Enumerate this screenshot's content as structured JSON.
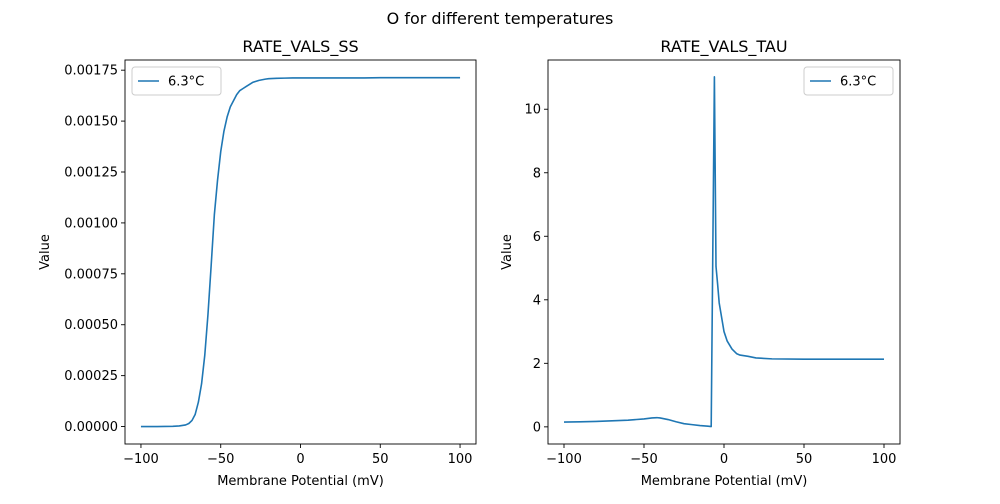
{
  "figure": {
    "suptitle": "O for different temperatures"
  },
  "chart_data": [
    {
      "type": "line",
      "title": "RATE_VALS_SS",
      "xlabel": "Membrane Potential (mV)",
      "ylabel": "Value",
      "xlim": [
        -110,
        110
      ],
      "ylim": [
        -8.57e-05,
        0.0018
      ],
      "xticks": [
        -100,
        -50,
        0,
        50,
        100
      ],
      "xtick_labels": [
        "−100",
        "−50",
        "0",
        "50",
        "100"
      ],
      "yticks": [
        0,
        0.00025,
        0.0005,
        0.00075,
        0.001,
        0.00125,
        0.0015,
        0.00175
      ],
      "ytick_labels": [
        "0.00000",
        "0.00025",
        "0.00050",
        "0.00075",
        "0.00100",
        "0.00125",
        "0.00150",
        "0.00175"
      ],
      "grid": false,
      "legend_position": "top-left",
      "colors": {
        "series": "#1f77b4"
      },
      "series": [
        {
          "name": "6.3°C",
          "x": [
            -100,
            -90,
            -80,
            -76,
            -72,
            -70,
            -68,
            -66,
            -64,
            -62,
            -60,
            -58,
            -56,
            -54,
            -52,
            -50,
            -48,
            -46,
            -44,
            -42,
            -40,
            -38,
            -36,
            -34,
            -32,
            -30,
            -28,
            -26,
            -24,
            -22,
            -20,
            -15,
            -10,
            -5,
            0,
            10,
            20,
            30,
            40,
            50,
            60,
            70,
            80,
            90,
            100
          ],
          "y": [
            0.0,
            0.0,
            1e-06,
            3e-06,
            8e-06,
            1.5e-05,
            3e-05,
            6e-05,
            0.00012,
            0.00021,
            0.00035,
            0.00055,
            0.00079,
            0.00104,
            0.00121,
            0.00135,
            0.00145,
            0.00152,
            0.00157,
            0.0016,
            0.00163,
            0.00165,
            0.00166,
            0.00167,
            0.00168,
            0.00169,
            0.001695,
            0.0017,
            0.001703,
            0.001706,
            0.001708,
            0.00171,
            0.001711,
            0.001712,
            0.001712,
            0.001712,
            0.001712,
            0.001712,
            0.001712,
            0.001713,
            0.001713,
            0.001713,
            0.001713,
            0.001713,
            0.001713
          ]
        }
      ]
    },
    {
      "type": "line",
      "title": "RATE_VALS_TAU",
      "xlabel": "Membrane Potential (mV)",
      "ylabel": "Value",
      "xlim": [
        -110,
        110
      ],
      "ylim": [
        -0.54,
        11.55
      ],
      "xticks": [
        -100,
        -50,
        0,
        50,
        100
      ],
      "xtick_labels": [
        "−100",
        "−50",
        "0",
        "50",
        "100"
      ],
      "yticks": [
        0,
        2,
        4,
        6,
        8,
        10
      ],
      "ytick_labels": [
        "0",
        "2",
        "4",
        "6",
        "8",
        "10"
      ],
      "grid": false,
      "legend_position": "top-right",
      "colors": {
        "series": "#1f77b4"
      },
      "series": [
        {
          "name": "6.3°C",
          "x": [
            -100,
            -90,
            -80,
            -70,
            -60,
            -50,
            -45,
            -42,
            -40,
            -35,
            -30,
            -25,
            -20,
            -15,
            -10,
            -8,
            -6,
            -5,
            -4,
            -3,
            -2,
            -1,
            0,
            2,
            5,
            8,
            10,
            15,
            20,
            30,
            50,
            70,
            100
          ],
          "y": [
            0.15,
            0.16,
            0.17,
            0.19,
            0.21,
            0.25,
            0.28,
            0.29,
            0.28,
            0.23,
            0.16,
            0.1,
            0.07,
            0.04,
            0.02,
            0.01,
            11.02,
            5.05,
            4.5,
            3.9,
            3.6,
            3.3,
            3.0,
            2.7,
            2.45,
            2.3,
            2.26,
            2.22,
            2.17,
            2.14,
            2.13,
            2.13,
            2.13
          ]
        }
      ]
    }
  ]
}
